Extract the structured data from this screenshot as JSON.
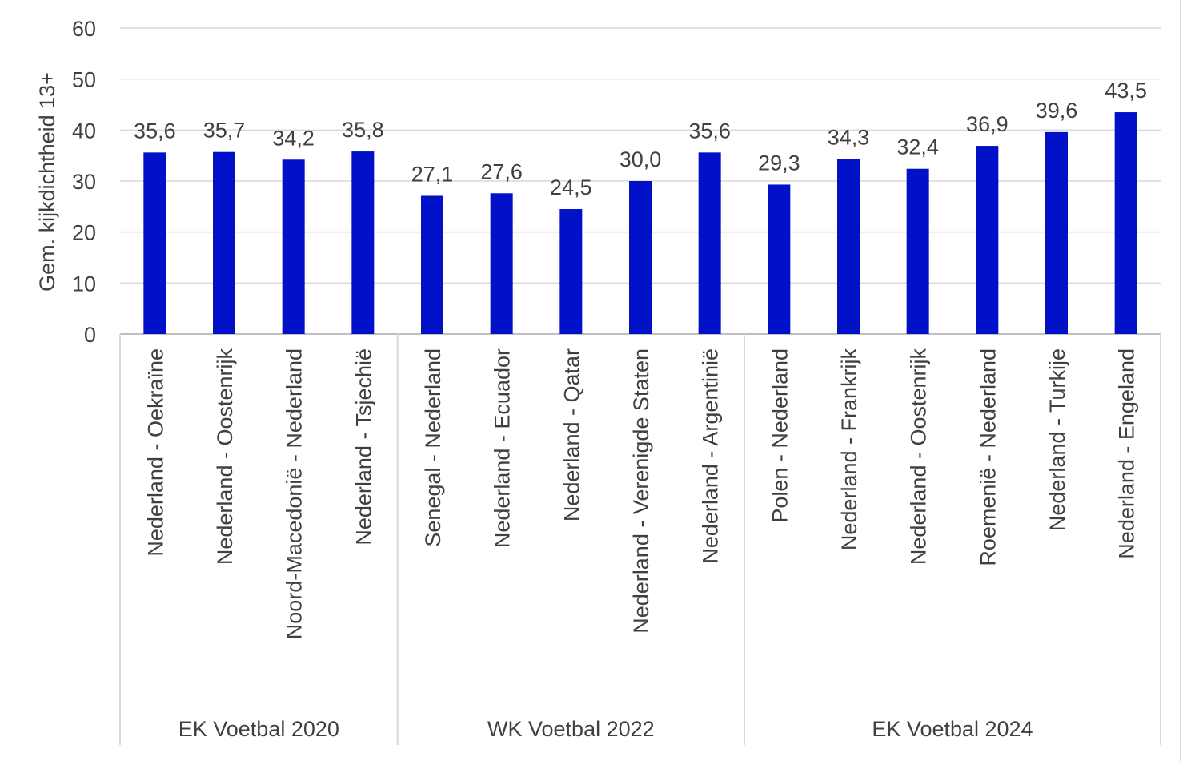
{
  "chart_data": {
    "type": "bar",
    "title": "",
    "xlabel": "",
    "ylabel": "Gem. kijkdichtheid 13+",
    "ylim": [
      0,
      60
    ],
    "yticks": [
      0,
      10,
      20,
      30,
      40,
      50,
      60
    ],
    "grid": true,
    "legend": "none",
    "bar_color": "#0011c7",
    "categories": [
      "Nederland - Oekraïne",
      "Nederland - Oostenrijk",
      "Noord-Macedonië - Nederland",
      "Nederland - Tsjechië",
      "Senegal - Nederland",
      "Nederland - Ecuador",
      "Nederland - Qatar",
      "Nederland - Verenigde Staten",
      "Nederland - Argentinië",
      "Polen - Nederland",
      "Nederland - Frankrijk",
      "Nederland - Oostenrijk",
      "Roemenië - Nederland",
      "Nederland - Turkije",
      "Nederland - Engeland"
    ],
    "values": [
      35.6,
      35.7,
      34.2,
      35.8,
      27.1,
      27.6,
      24.5,
      30.0,
      35.6,
      29.3,
      34.3,
      32.4,
      36.9,
      39.6,
      43.5
    ],
    "data_labels": [
      "35,6",
      "35,7",
      "34,2",
      "35,8",
      "27,1",
      "27,6",
      "24,5",
      "30,0",
      "35,6",
      "29,3",
      "34,3",
      "32,4",
      "36,9",
      "39,6",
      "43,5"
    ],
    "groups": [
      {
        "label": "EK Voetbal 2020",
        "count": 4
      },
      {
        "label": "WK Voetbal 2022",
        "count": 5
      },
      {
        "label": "EK Voetbal 2024",
        "count": 6
      }
    ]
  }
}
